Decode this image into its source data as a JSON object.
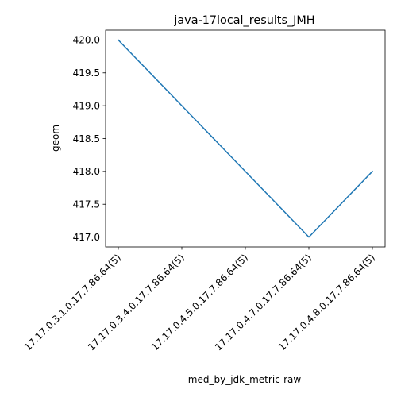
{
  "chart_data": {
    "type": "line",
    "title": "java-17local_results_JMH",
    "xlabel": "med_by_jdk_metric-raw",
    "ylabel": "geom",
    "categories": [
      "17.17.0.3.1.0.17.7.86.64(5)",
      "17.17.0.3.4.0.17.7.86.64(5)",
      "17.17.0.4.5.0.17.7.86.64(5)",
      "17.17.0.4.7.0.17.7.86.64(5)",
      "17.17.0.4.8.0.17.7.86.64(5)"
    ],
    "series": [
      {
        "values": [
          420.0,
          419.0,
          418.0,
          417.0,
          418.0
        ],
        "color": "#1f77b4"
      }
    ],
    "yticks": [
      "417.0",
      "417.5",
      "418.0",
      "418.5",
      "419.0",
      "419.5",
      "420.0"
    ],
    "ylim": [
      416.85,
      420.15
    ],
    "grid": false,
    "legend": "none"
  }
}
